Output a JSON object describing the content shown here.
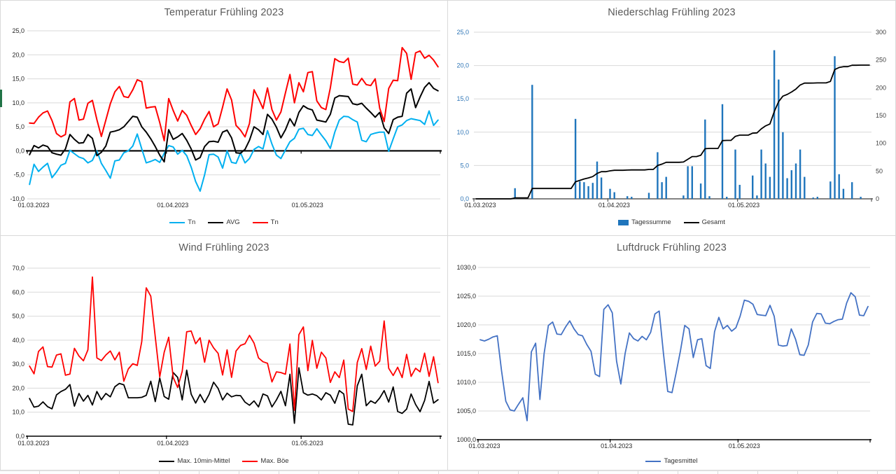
{
  "x_axis": {
    "tick_labels": [
      "01.03.2023",
      "01.04.2023",
      "01.05.2023"
    ],
    "tick_days": [
      0,
      31,
      61
    ],
    "days": 92
  },
  "chart_data": [
    {
      "type": "line",
      "title": "Temperatur Frühling 2023",
      "x_tick_labels": [
        "01.03.2023",
        "01.04.2023",
        "01.05.2023"
      ],
      "left_axis": {
        "min": -10,
        "max": 25,
        "tick_values": [
          25,
          20,
          15,
          10,
          5,
          0,
          -5,
          -10
        ],
        "tick_labels": [
          "25,0",
          "20,0",
          "15,0",
          "10,0",
          "5,0",
          "0,0",
          "-5,0",
          "-10,0"
        ],
        "label_color": "#262626"
      },
      "grid_values": [
        25,
        20,
        15,
        10,
        5,
        -5,
        -10
      ],
      "axis_cross": 0,
      "legend_position": "bottom",
      "series": [
        {
          "name": "Tn",
          "color": "#00B0F0",
          "type": "line",
          "axis": "left",
          "values": [
            -7.0,
            -2.8,
            -4.3,
            -3.4,
            -2.6,
            -5.6,
            -4.4,
            -3.0,
            -2.6,
            0.1,
            -0.6,
            -1.3,
            -1.6,
            -2.5,
            -2.0,
            0.0,
            -2.6,
            -4.1,
            -5.7,
            -2.1,
            -1.9,
            -0.4,
            0.0,
            1.0,
            3.5,
            0.4,
            -2.5,
            -2.2,
            -1.8,
            -2.4,
            -0.5,
            1.1,
            0.8,
            -0.7,
            0.1,
            -1.0,
            -3.4,
            -6.4,
            -8.4,
            -5.0,
            -0.8,
            -0.7,
            -1.3,
            -3.6,
            0.0,
            -2.4,
            -2.6,
            -0.4,
            -2.5,
            -1.6,
            0.3,
            0.9,
            0.4,
            4.2,
            1.4,
            -0.9,
            -1.6,
            0.2,
            1.9,
            2.6,
            4.5,
            4.7,
            3.4,
            3.2,
            4.6,
            3.3,
            2.1,
            0.5,
            3.9,
            6.4,
            7.2,
            7.1,
            6.5,
            6.0,
            2.2,
            1.9,
            3.4,
            3.7,
            3.9,
            3.9,
            -0.1,
            2.5,
            5.0,
            5.4,
            6.3,
            6.7,
            6.5,
            6.3,
            5.5,
            8.3,
            5.3,
            6.4
          ]
        },
        {
          "name": "AVG",
          "color": "#000000",
          "type": "line",
          "axis": "left",
          "values": [
            -0.8,
            1.1,
            0.6,
            1.2,
            0.9,
            -0.4,
            -0.7,
            -0.9,
            0.4,
            3.4,
            2.4,
            1.6,
            1.7,
            3.4,
            2.6,
            -1.0,
            -0.3,
            1.0,
            3.9,
            4.1,
            4.4,
            5.0,
            6.1,
            7.2,
            7.0,
            5.0,
            3.9,
            2.5,
            0.9,
            -0.9,
            -2.3,
            4.4,
            2.4,
            2.9,
            3.6,
            2.2,
            0.4,
            -1.9,
            -1.4,
            0.9,
            1.9,
            2.0,
            1.8,
            3.9,
            4.3,
            2.7,
            -0.4,
            -0.5,
            0.3,
            2.2,
            5.0,
            4.4,
            3.4,
            7.6,
            6.6,
            4.9,
            2.7,
            4.4,
            6.7,
            5.2,
            8.0,
            9.4,
            8.8,
            8.5,
            6.4,
            6.2,
            6.0,
            7.6,
            11.0,
            11.5,
            11.4,
            11.3,
            9.8,
            9.6,
            9.9,
            8.9,
            8.0,
            7.0,
            8.0,
            4.8,
            3.6,
            6.5,
            7.0,
            7.2,
            12.0,
            12.9,
            9.0,
            11.2,
            13.2,
            14.2,
            13.0,
            12.5
          ]
        },
        {
          "name": "Tn",
          "color": "#FF0000",
          "type": "line",
          "axis": "left",
          "values": [
            5.8,
            5.7,
            7.0,
            7.9,
            8.3,
            6.3,
            3.6,
            2.9,
            3.4,
            10.2,
            10.9,
            6.4,
            6.6,
            9.9,
            10.5,
            6.5,
            3.0,
            6.4,
            9.8,
            12.3,
            13.4,
            11.3,
            11.1,
            12.7,
            14.8,
            14.4,
            8.9,
            9.1,
            9.2,
            5.9,
            2.1,
            10.9,
            8.4,
            6.2,
            8.4,
            7.4,
            5.3,
            3.4,
            4.6,
            6.6,
            8.2,
            5.0,
            5.6,
            9.1,
            12.9,
            10.6,
            5.3,
            4.3,
            2.9,
            5.7,
            12.7,
            10.9,
            8.8,
            13.1,
            8.6,
            6.4,
            8.1,
            12.1,
            15.9,
            10.0,
            14.2,
            12.3,
            16.3,
            16.5,
            10.4,
            9.0,
            8.6,
            13.1,
            19.2,
            18.6,
            18.4,
            19.3,
            13.9,
            13.7,
            15.1,
            13.8,
            13.6,
            15.0,
            8.9,
            6.1,
            13.0,
            14.7,
            14.6,
            21.5,
            20.3,
            14.9,
            20.4,
            20.8,
            19.3,
            19.9,
            18.9,
            17.5
          ]
        }
      ]
    },
    {
      "type": "bar",
      "title": "Niederschlag Frühling 2023",
      "x_tick_labels": [
        "01.03.2023",
        "01.04.2023",
        "01.05.2023"
      ],
      "left_axis": {
        "min": 0,
        "max": 25,
        "tick_values": [
          25,
          20,
          15,
          10,
          5,
          0
        ],
        "tick_labels": [
          "25,0",
          "20,0",
          "15,0",
          "10,0",
          "5,0",
          "0,0"
        ],
        "label_color": "#2E75B6"
      },
      "right_axis": {
        "min": 0,
        "max": 300,
        "tick_values": [
          300,
          250,
          200,
          150,
          100,
          50,
          0
        ],
        "tick_labels": [
          "300",
          "250",
          "200",
          "150",
          "100",
          "50",
          "0"
        ],
        "label_color": "#404040"
      },
      "grid_values": [
        25,
        20,
        15,
        10,
        5
      ],
      "axis_cross": 0,
      "total_precip_mm": 240.8,
      "series": [
        {
          "name": "Tagessumme",
          "color": "#1F75BC",
          "type": "bar",
          "axis": "left",
          "values": [
            0,
            0,
            0,
            0,
            0,
            0,
            0,
            0,
            0,
            1.6,
            0,
            0,
            0,
            17.1,
            0,
            0,
            0,
            0,
            0,
            0,
            0,
            0,
            0,
            12.0,
            2.6,
            2.5,
            1.9,
            2.4,
            5.6,
            3.2,
            0,
            1.5,
            1.0,
            0,
            0,
            0.4,
            0.3,
            0,
            0,
            0,
            0.9,
            0,
            7.0,
            2.5,
            3.3,
            0,
            0,
            0,
            0.5,
            4.9,
            4.9,
            0,
            2.3,
            11.9,
            0.4,
            0,
            0,
            14.2,
            0.3,
            0,
            7.4,
            2.1,
            0,
            0,
            3.5,
            0.5,
            7.4,
            5.3,
            3.3,
            22.3,
            17.9,
            10.0,
            3.1,
            4.3,
            5.3,
            7.4,
            3.3,
            0,
            0.2,
            0.3,
            0,
            0,
            2.6,
            21.4,
            3.7,
            1.5,
            0,
            2.5,
            0,
            0.3,
            0,
            0
          ]
        },
        {
          "name": "Gesamt",
          "color": "#000000",
          "type": "line",
          "axis": "right",
          "cumulative_of": 0
        }
      ]
    },
    {
      "type": "line",
      "title": "Wind Frühling 2023",
      "x_tick_labels": [
        "01.03.2023",
        "01.04.2023",
        "01.05.2023"
      ],
      "left_axis": {
        "min": 0,
        "max": 70,
        "tick_values": [
          70,
          60,
          50,
          40,
          30,
          20,
          10,
          0
        ],
        "tick_labels": [
          "70,0",
          "60,0",
          "50,0",
          "40,0",
          "30,0",
          "20,0",
          "10,0",
          "0,0"
        ],
        "label_color": "#262626"
      },
      "grid_values": [
        70,
        60,
        50,
        40,
        30,
        20,
        10
      ],
      "axis_cross": 0,
      "series": [
        {
          "name": "Max. 10min-Mittel",
          "color": "#000000",
          "type": "line",
          "axis": "left",
          "values": [
            15.7,
            12.1,
            12.5,
            14.3,
            12.3,
            11.4,
            17.2,
            18.6,
            19.5,
            21.5,
            12.5,
            17.8,
            14.6,
            17.0,
            13.0,
            18.6,
            15.2,
            17.8,
            16.4,
            20.6,
            22.0,
            21.4,
            16.0,
            16.0,
            16.0,
            16.2,
            17.0,
            22.9,
            14.4,
            24.2,
            16.5,
            15.4,
            26.5,
            24.5,
            15.1,
            27.5,
            17.5,
            13.8,
            17.4,
            14.0,
            17.4,
            22.5,
            19.9,
            15.1,
            17.9,
            16.4,
            17.0,
            16.9,
            14.2,
            12.9,
            14.7,
            12.2,
            17.6,
            16.8,
            12.2,
            15.1,
            18.7,
            12.7,
            25.8,
            5.4,
            28.5,
            18.1,
            17.1,
            17.6,
            16.9,
            15.1,
            18.1,
            17.1,
            13.7,
            19.0,
            17.6,
            5.0,
            4.7,
            21.0,
            25.8,
            12.7,
            14.7,
            13.7,
            15.9,
            19.0,
            14.2,
            20.5,
            10.3,
            9.5,
            11.3,
            17.6,
            13.2,
            10.2,
            14.9,
            22.8,
            13.8,
            15.2
          ]
        },
        {
          "name": "Max. Böe",
          "color": "#FF0000",
          "type": "line",
          "axis": "left",
          "values": [
            29.2,
            26.0,
            35.3,
            37.2,
            29.0,
            28.8,
            33.8,
            34.3,
            25.4,
            25.9,
            36.6,
            33.4,
            31.4,
            36.0,
            66.3,
            32.6,
            31.5,
            33.8,
            35.5,
            31.8,
            35.0,
            22.9,
            28.0,
            30.2,
            29.5,
            39.4,
            61.8,
            58.3,
            41.4,
            24.7,
            35.0,
            41.2,
            24.5,
            20.3,
            27.0,
            43.5,
            43.8,
            38.5,
            41.0,
            30.8,
            40.0,
            36.8,
            34.5,
            25.5,
            36.0,
            24.5,
            35.5,
            37.8,
            38.5,
            42.0,
            38.8,
            32.6,
            31.0,
            30.4,
            22.6,
            26.8,
            26.5,
            25.8,
            38.4,
            10.8,
            42.3,
            45.5,
            27.3,
            39.9,
            28.3,
            35.0,
            32.6,
            22.4,
            26.8,
            24.4,
            31.7,
            11.3,
            10.3,
            30.7,
            36.5,
            27.8,
            37.5,
            29.2,
            31.2,
            48.0,
            28.3,
            25.3,
            28.7,
            24.4,
            34.1,
            24.9,
            28.3,
            26.8,
            34.6,
            24.9,
            33.1,
            22.3
          ]
        }
      ]
    },
    {
      "type": "line",
      "title": "Luftdruck Frühling 2023",
      "x_tick_labels": [
        "01.03.2023",
        "01.04.2023",
        "01.05.2023"
      ],
      "left_axis": {
        "min": 1000,
        "max": 1030,
        "tick_values": [
          1030,
          1025,
          1020,
          1015,
          1010,
          1005,
          1000
        ],
        "tick_labels": [
          "1030,0",
          "1025,0",
          "1020,0",
          "1015,0",
          "1010,0",
          "1005,0",
          "1000,0"
        ],
        "label_color": "#262626"
      },
      "grid_values": [
        1030,
        1025,
        1020,
        1015,
        1010,
        1005
      ],
      "axis_cross": 1000,
      "series": [
        {
          "name": "Tagesmittel",
          "color": "#4472C4",
          "type": "line",
          "axis": "left",
          "values": [
            1017.4,
            1017.2,
            1017.5,
            1017.9,
            1018.1,
            1012.0,
            1006.7,
            1005.2,
            1005.0,
            1006.2,
            1007.3,
            1003.3,
            1015.3,
            1016.8,
            1007.0,
            1015.0,
            1019.9,
            1020.5,
            1018.4,
            1018.3,
            1019.6,
            1020.7,
            1019.3,
            1018.3,
            1018.1,
            1016.6,
            1015.4,
            1011.4,
            1011.0,
            1022.7,
            1023.5,
            1022.1,
            1013.7,
            1009.7,
            1015.0,
            1018.6,
            1017.6,
            1017.2,
            1018.0,
            1017.4,
            1018.7,
            1021.9,
            1022.4,
            1015.0,
            1008.4,
            1008.2,
            1011.7,
            1015.5,
            1019.9,
            1019.3,
            1014.3,
            1017.4,
            1017.6,
            1012.9,
            1012.4,
            1018.8,
            1021.3,
            1019.3,
            1019.9,
            1018.9,
            1019.5,
            1021.5,
            1024.3,
            1024.1,
            1023.6,
            1021.8,
            1021.7,
            1021.6,
            1023.4,
            1021.5,
            1016.5,
            1016.3,
            1016.4,
            1019.3,
            1017.5,
            1014.8,
            1014.7,
            1016.5,
            1020.5,
            1022.0,
            1021.9,
            1020.3,
            1020.2,
            1020.6,
            1020.9,
            1021.0,
            1023.8,
            1025.6,
            1024.9,
            1021.7,
            1021.6,
            1023.2
          ]
        }
      ]
    }
  ]
}
